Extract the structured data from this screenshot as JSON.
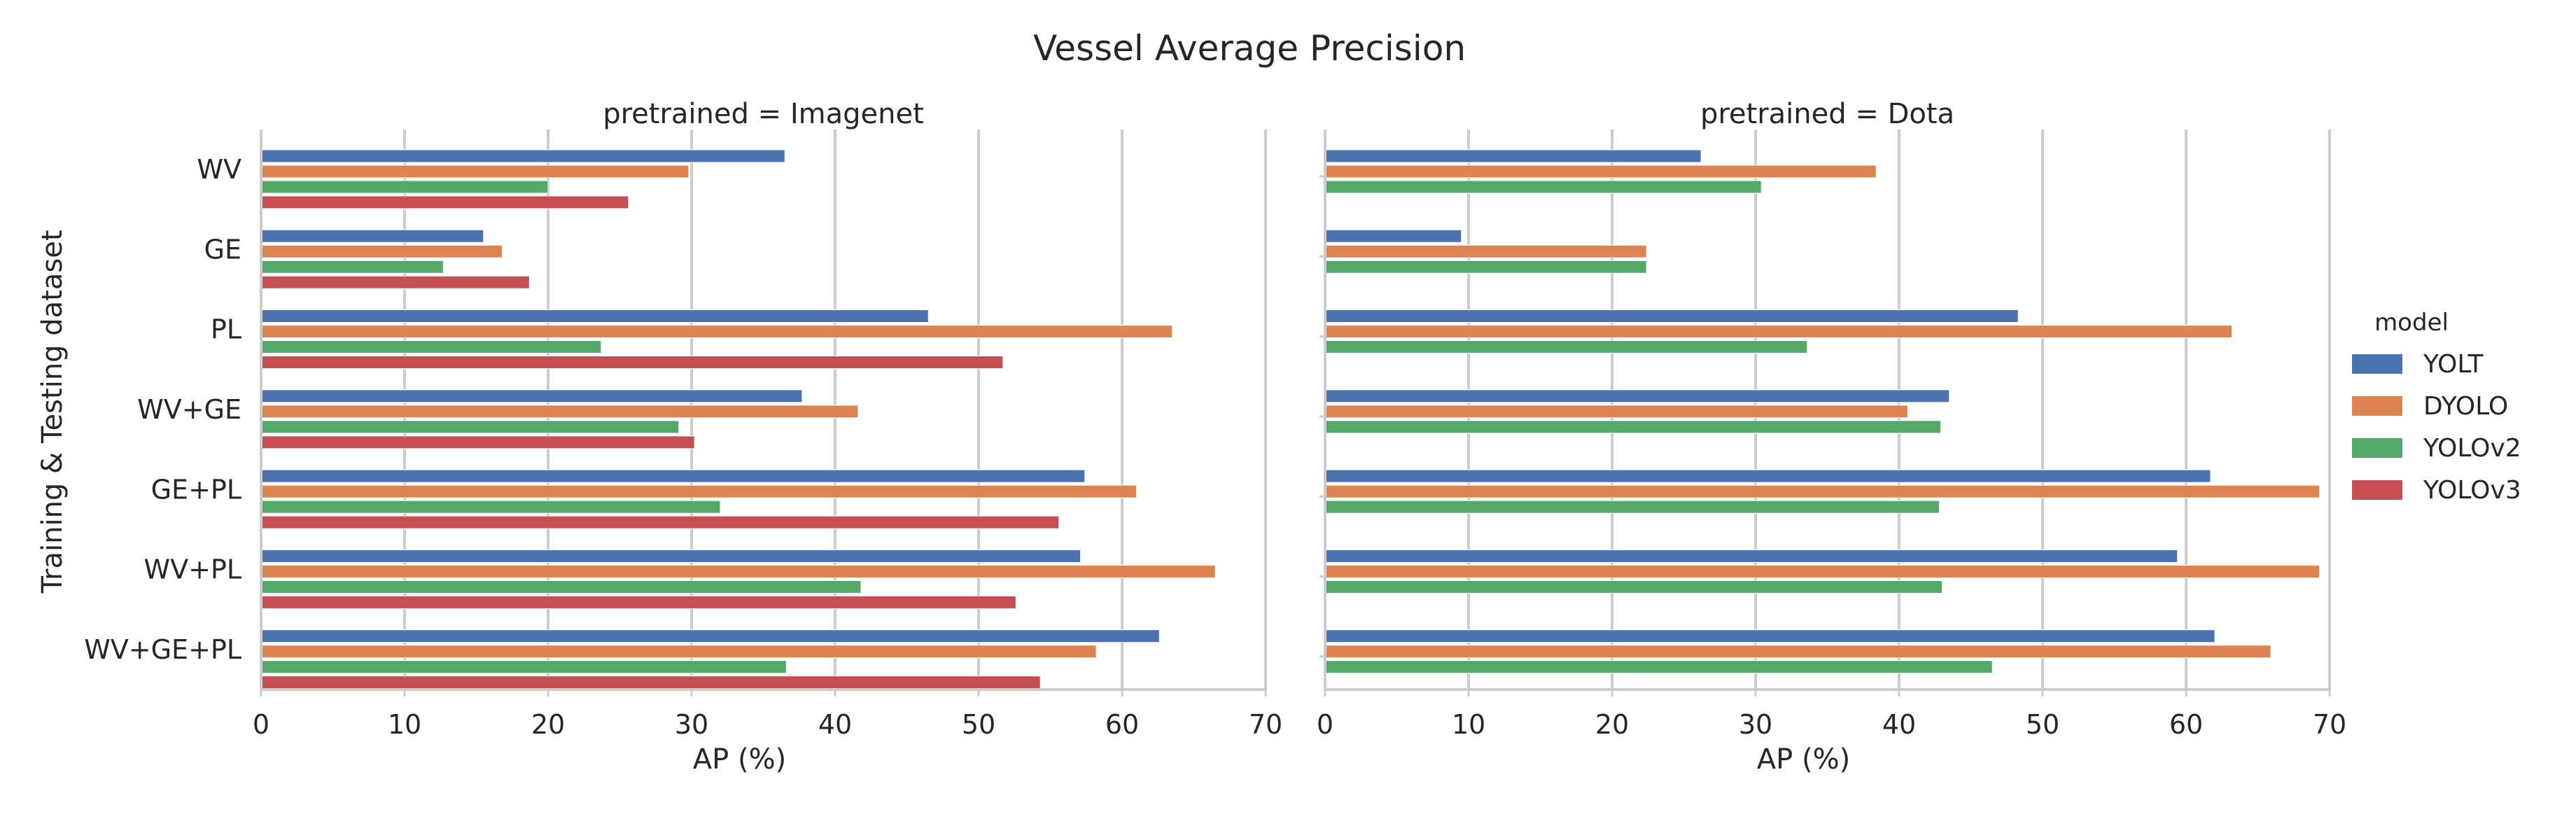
{
  "chart_data": {
    "type": "bar",
    "orientation": "horizontal",
    "title": "Vessel Average Precision",
    "xlabel": "AP (%)",
    "ylabel": "Training & Testing dataset",
    "xlim": [
      0,
      70
    ],
    "xticks": [
      "0",
      "10",
      "20",
      "30",
      "40",
      "50",
      "60",
      "70"
    ],
    "grid": "vertical",
    "categories": [
      "WV",
      "GE",
      "PL",
      "WV+GE",
      "GE+PL",
      "WV+PL",
      "WV+GE+PL"
    ],
    "legend": {
      "title": "model",
      "placement": "right",
      "entries": [
        {
          "name": "YOLT",
          "color": "#4c72b0"
        },
        {
          "name": "DYOLO",
          "color": "#dd8452"
        },
        {
          "name": "YOLOv2",
          "color": "#55a868"
        },
        {
          "name": "YOLOv3",
          "color": "#c44e52"
        }
      ]
    },
    "panels": [
      {
        "title": "pretrained = Imagenet",
        "series": [
          {
            "name": "YOLT",
            "values": [
              36.5,
              15.5,
              46.5,
              37.7,
              57.4,
              57.1,
              62.6
            ]
          },
          {
            "name": "DYOLO",
            "values": [
              29.8,
              16.8,
              63.5,
              41.6,
              61.0,
              66.5,
              58.2
            ]
          },
          {
            "name": "YOLOv2",
            "values": [
              20.0,
              12.7,
              23.7,
              29.1,
              32.0,
              41.8,
              36.6
            ]
          },
          {
            "name": "YOLOv3",
            "values": [
              25.6,
              18.7,
              51.7,
              30.2,
              55.6,
              52.6,
              54.3
            ]
          }
        ]
      },
      {
        "title": "pretrained = Dota",
        "series": [
          {
            "name": "YOLT",
            "values": [
              26.2,
              9.5,
              48.3,
              43.5,
              61.7,
              59.4,
              62.0
            ]
          },
          {
            "name": "DYOLO",
            "values": [
              38.4,
              22.4,
              63.2,
              40.6,
              69.3,
              69.3,
              65.9
            ]
          },
          {
            "name": "YOLOv2",
            "values": [
              30.4,
              22.4,
              33.6,
              42.9,
              42.8,
              43.0,
              46.5
            ]
          },
          {
            "name": "YOLOv3",
            "values": [
              null,
              null,
              null,
              null,
              null,
              null,
              null
            ]
          }
        ]
      }
    ]
  }
}
